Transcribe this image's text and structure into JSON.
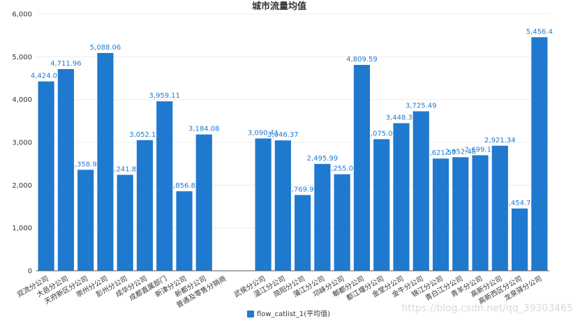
{
  "chart_data": {
    "type": "bar",
    "title": "城市流量均值",
    "xlabel": "",
    "ylabel": "",
    "ylim": [
      0,
      6000
    ],
    "yticks": [
      "0",
      "1,000",
      "2,000",
      "3,000",
      "4,000",
      "5,000",
      "6,000"
    ],
    "grid": true,
    "legend_position": "bottom-center",
    "categories": [
      "双流分公司",
      "大邑分公司",
      "天府新区分公司",
      "崇州分公司",
      "彭州分公司",
      "成华分公司",
      "成都直属部门",
      "新津分公司",
      "新都分公司",
      "普通及零售分销商",
      "",
      "武侯分公司",
      "温江分公司",
      "简阳分公司",
      "蒲江分公司",
      "邛崃分公司",
      "郫都分公司",
      "都江堰分公司",
      "金堂分公司",
      "金牛分公司",
      "锦江分公司",
      "青白江分公司",
      "青羊分公司",
      "高新分公司",
      "高新西区分公司",
      "龙泉驿分公司"
    ],
    "series": [
      {
        "name": "flow_catlist_1(平均值)",
        "color": "#1f7acf",
        "values": [
          4424.01,
          4711.96,
          2358.96,
          5088.06,
          2241.84,
          3052.11,
          3959.11,
          1856.85,
          3184.08,
          null,
          null,
          3090.41,
          3046.37,
          1769.99,
          2495.99,
          2255.08,
          4809.59,
          3075.02,
          3448.38,
          3725.49,
          2621.57,
          2652.48,
          2699.12,
          2921.34,
          1454.74,
          5456.4
        ],
        "labels": [
          "4,424.01",
          "4,711.96",
          "2,358.96",
          "5,088.06",
          "2,241.84",
          "3,052.11",
          "3,959.11",
          "1,856.85",
          "3,184.08",
          "",
          "",
          "3,090.41",
          "3,046.37",
          "1,769.99",
          "2,495.99",
          "2,255.08",
          "4,809.59",
          "3,075.02",
          "3,448.38",
          "3,725.49",
          "2,621.57",
          "2,652.48",
          "2,699.12",
          "2,921.34",
          "1,454.74",
          "5,456.4"
        ]
      }
    ]
  },
  "watermark": "https://blog.csdn.net/qq_39303465"
}
